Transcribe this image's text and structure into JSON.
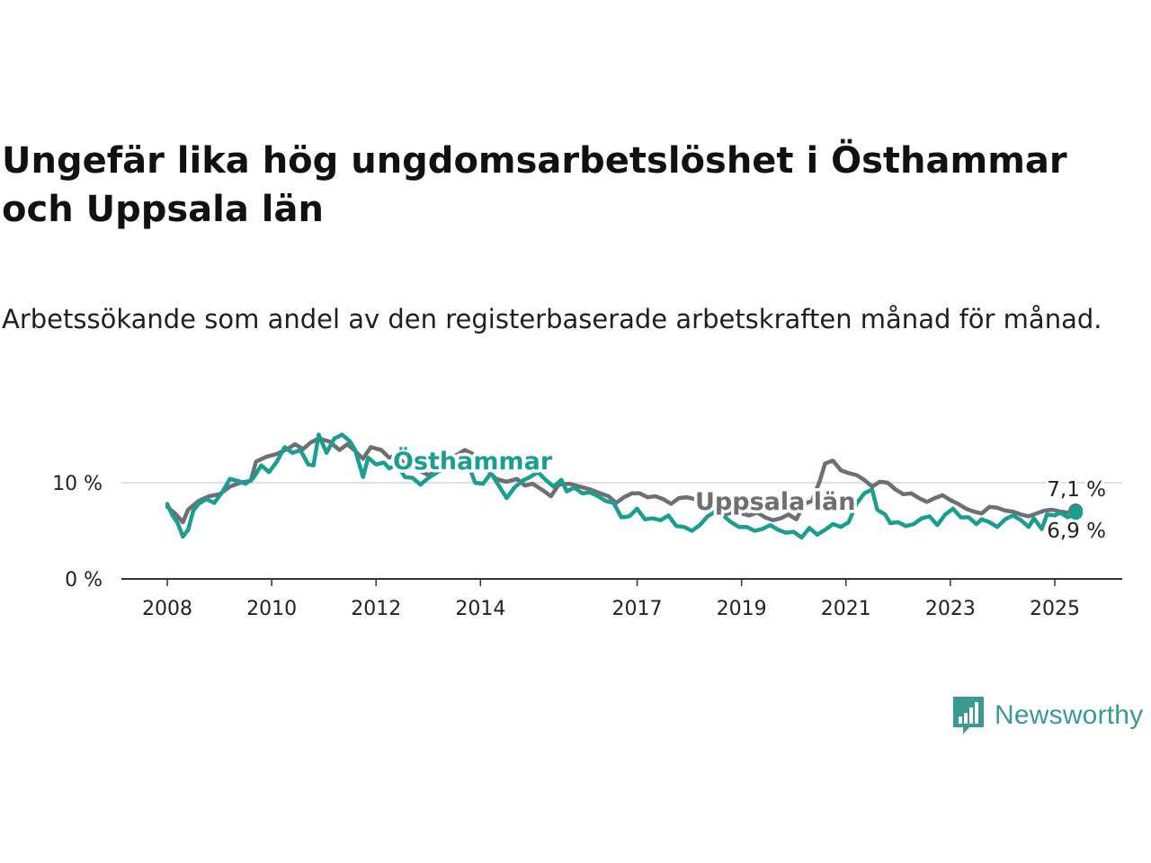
{
  "title": "Ungefär lika hög ungdomsarbetslöshet i Östhammar och Uppsala län",
  "subtitle": "Arbetssökande som andel av den registerbaserade arbetskraften månad för månad.",
  "brand": {
    "name": "Newsworthy",
    "color": "#3a9a92",
    "icon": "bar-chart-speech-bubble-icon"
  },
  "chart_data": {
    "type": "line",
    "x_unit": "year",
    "y_unit": "%",
    "ylim": [
      0,
      15
    ],
    "xlim": [
      2007.6,
      2026.4
    ],
    "grid": "horizontal",
    "y_ticks": [
      {
        "value": 0,
        "label": "0 %"
      },
      {
        "value": 10,
        "label": "10 %"
      }
    ],
    "x_ticks": [
      {
        "value": 2008,
        "label": "2008"
      },
      {
        "value": 2010,
        "label": "2010"
      },
      {
        "value": 2012,
        "label": "2012"
      },
      {
        "value": 2014,
        "label": "2014"
      },
      {
        "value": 2017,
        "label": "2017"
      },
      {
        "value": 2019,
        "label": "2019"
      },
      {
        "value": 2021,
        "label": "2021"
      },
      {
        "value": 2023,
        "label": "2023"
      },
      {
        "value": 2025,
        "label": "2025"
      }
    ],
    "series": [
      {
        "name": "Uppsala län",
        "color": "#6e6e73",
        "last_label": "7,1 %",
        "points": [
          [
            2008.0,
            7.5
          ],
          [
            2008.15,
            6.8
          ],
          [
            2008.3,
            5.9
          ],
          [
            2008.4,
            7.2
          ],
          [
            2008.6,
            8.1
          ],
          [
            2008.8,
            8.6
          ],
          [
            2009.0,
            8.8
          ],
          [
            2009.2,
            9.6
          ],
          [
            2009.4,
            10.0
          ],
          [
            2009.6,
            10.2
          ],
          [
            2009.7,
            12.2
          ],
          [
            2009.9,
            12.7
          ],
          [
            2010.1,
            13.0
          ],
          [
            2010.3,
            13.5
          ],
          [
            2010.45,
            14.0
          ],
          [
            2010.6,
            13.5
          ],
          [
            2010.75,
            14.2
          ],
          [
            2010.9,
            14.6
          ],
          [
            2011.1,
            14.3
          ],
          [
            2011.3,
            13.4
          ],
          [
            2011.45,
            14.0
          ],
          [
            2011.6,
            13.3
          ],
          [
            2011.75,
            12.5
          ],
          [
            2011.9,
            13.7
          ],
          [
            2012.1,
            13.4
          ],
          [
            2012.25,
            12.6
          ],
          [
            2012.4,
            12.9
          ],
          [
            2012.55,
            11.9
          ],
          [
            2012.7,
            11.6
          ],
          [
            2012.85,
            11.2
          ],
          [
            2013.0,
            10.8
          ],
          [
            2013.2,
            11.2
          ],
          [
            2013.4,
            12.6
          ],
          [
            2013.55,
            12.9
          ],
          [
            2013.7,
            13.4
          ],
          [
            2013.85,
            13.0
          ],
          [
            2014.0,
            12.1
          ],
          [
            2014.15,
            11.2
          ],
          [
            2014.3,
            10.4
          ],
          [
            2014.5,
            10.1
          ],
          [
            2014.7,
            10.4
          ],
          [
            2014.85,
            9.7
          ],
          [
            2015.0,
            9.9
          ],
          [
            2015.2,
            9.2
          ],
          [
            2015.35,
            8.6
          ],
          [
            2015.5,
            9.8
          ],
          [
            2015.7,
            9.9
          ],
          [
            2015.9,
            9.6
          ],
          [
            2016.1,
            9.3
          ],
          [
            2016.3,
            8.9
          ],
          [
            2016.45,
            8.6
          ],
          [
            2016.6,
            7.9
          ],
          [
            2016.75,
            8.5
          ],
          [
            2016.9,
            8.9
          ],
          [
            2017.05,
            8.9
          ],
          [
            2017.2,
            8.5
          ],
          [
            2017.35,
            8.6
          ],
          [
            2017.5,
            8.3
          ],
          [
            2017.65,
            7.8
          ],
          [
            2017.8,
            8.4
          ],
          [
            2017.95,
            8.5
          ],
          [
            2018.1,
            8.3
          ],
          [
            2018.25,
            7.9
          ],
          [
            2018.4,
            7.6
          ],
          [
            2018.55,
            6.8
          ],
          [
            2018.7,
            6.7
          ],
          [
            2018.85,
            7.0
          ],
          [
            2019.0,
            6.8
          ],
          [
            2019.15,
            6.6
          ],
          [
            2019.3,
            6.9
          ],
          [
            2019.45,
            6.4
          ],
          [
            2019.6,
            6.1
          ],
          [
            2019.75,
            6.3
          ],
          [
            2019.9,
            6.7
          ],
          [
            2020.05,
            6.2
          ],
          [
            2020.2,
            7.8
          ],
          [
            2020.35,
            8.1
          ],
          [
            2020.5,
            10.2
          ],
          [
            2020.6,
            12.0
          ],
          [
            2020.75,
            12.3
          ],
          [
            2020.9,
            11.3
          ],
          [
            2021.05,
            11.0
          ],
          [
            2021.2,
            10.8
          ],
          [
            2021.35,
            10.3
          ],
          [
            2021.5,
            9.6
          ],
          [
            2021.65,
            10.1
          ],
          [
            2021.8,
            10.0
          ],
          [
            2021.95,
            9.3
          ],
          [
            2022.1,
            8.8
          ],
          [
            2022.25,
            8.9
          ],
          [
            2022.4,
            8.4
          ],
          [
            2022.55,
            8.0
          ],
          [
            2022.7,
            8.4
          ],
          [
            2022.85,
            8.7
          ],
          [
            2023.0,
            8.2
          ],
          [
            2023.15,
            7.8
          ],
          [
            2023.3,
            7.3
          ],
          [
            2023.45,
            7.0
          ],
          [
            2023.6,
            6.8
          ],
          [
            2023.75,
            7.5
          ],
          [
            2023.9,
            7.4
          ],
          [
            2024.05,
            7.1
          ],
          [
            2024.2,
            7.0
          ],
          [
            2024.35,
            6.7
          ],
          [
            2024.5,
            6.5
          ],
          [
            2024.65,
            6.8
          ],
          [
            2024.8,
            7.1
          ],
          [
            2024.95,
            7.2
          ],
          [
            2025.1,
            7.0
          ],
          [
            2025.25,
            6.9
          ],
          [
            2025.4,
            7.1
          ]
        ]
      },
      {
        "name": "Östhammar",
        "color": "#1a9e92",
        "last_label": "6,9 %",
        "points": [
          [
            2008.0,
            7.8
          ],
          [
            2008.1,
            6.6
          ],
          [
            2008.2,
            5.8
          ],
          [
            2008.3,
            4.4
          ],
          [
            2008.4,
            5.1
          ],
          [
            2008.5,
            7.1
          ],
          [
            2008.6,
            7.8
          ],
          [
            2008.75,
            8.3
          ],
          [
            2008.9,
            7.9
          ],
          [
            2009.05,
            9.0
          ],
          [
            2009.2,
            10.4
          ],
          [
            2009.35,
            10.2
          ],
          [
            2009.5,
            9.9
          ],
          [
            2009.65,
            10.5
          ],
          [
            2009.8,
            11.8
          ],
          [
            2009.95,
            11.1
          ],
          [
            2010.1,
            12.2
          ],
          [
            2010.25,
            13.7
          ],
          [
            2010.4,
            13.1
          ],
          [
            2010.55,
            13.4
          ],
          [
            2010.7,
            11.9
          ],
          [
            2010.8,
            11.8
          ],
          [
            2010.9,
            15.0
          ],
          [
            2011.05,
            13.1
          ],
          [
            2011.2,
            14.6
          ],
          [
            2011.35,
            15.0
          ],
          [
            2011.5,
            14.3
          ],
          [
            2011.6,
            13.4
          ],
          [
            2011.75,
            10.6
          ],
          [
            2011.85,
            12.6
          ],
          [
            2012.0,
            11.9
          ],
          [
            2012.15,
            12.1
          ],
          [
            2012.25,
            11.5
          ],
          [
            2012.4,
            11.9
          ],
          [
            2012.55,
            10.6
          ],
          [
            2012.7,
            10.5
          ],
          [
            2012.85,
            9.8
          ],
          [
            2013.0,
            10.5
          ],
          [
            2013.2,
            11.2
          ],
          [
            2013.4,
            11.6
          ],
          [
            2013.6,
            12.0
          ],
          [
            2013.8,
            11.4
          ],
          [
            2013.9,
            10.0
          ],
          [
            2014.05,
            9.9
          ],
          [
            2014.2,
            11.0
          ],
          [
            2014.35,
            9.7
          ],
          [
            2014.5,
            8.4
          ],
          [
            2014.65,
            9.5
          ],
          [
            2014.8,
            10.2
          ],
          [
            2014.95,
            10.6
          ],
          [
            2015.1,
            11.1
          ],
          [
            2015.25,
            10.3
          ],
          [
            2015.4,
            9.6
          ],
          [
            2015.55,
            10.3
          ],
          [
            2015.65,
            9.1
          ],
          [
            2015.8,
            9.5
          ],
          [
            2015.95,
            8.9
          ],
          [
            2016.1,
            9.0
          ],
          [
            2016.25,
            8.6
          ],
          [
            2016.4,
            8.1
          ],
          [
            2016.55,
            7.9
          ],
          [
            2016.7,
            6.4
          ],
          [
            2016.85,
            6.5
          ],
          [
            2017.0,
            7.3
          ],
          [
            2017.15,
            6.2
          ],
          [
            2017.3,
            6.3
          ],
          [
            2017.45,
            6.1
          ],
          [
            2017.6,
            6.6
          ],
          [
            2017.75,
            5.5
          ],
          [
            2017.9,
            5.4
          ],
          [
            2018.05,
            5.0
          ],
          [
            2018.2,
            5.6
          ],
          [
            2018.35,
            6.5
          ],
          [
            2018.5,
            7.0
          ],
          [
            2018.65,
            6.6
          ],
          [
            2018.8,
            5.9
          ],
          [
            2018.95,
            5.4
          ],
          [
            2019.1,
            5.4
          ],
          [
            2019.25,
            5.0
          ],
          [
            2019.4,
            5.2
          ],
          [
            2019.55,
            5.6
          ],
          [
            2019.7,
            5.1
          ],
          [
            2019.85,
            4.8
          ],
          [
            2020.0,
            4.9
          ],
          [
            2020.15,
            4.3
          ],
          [
            2020.3,
            5.3
          ],
          [
            2020.45,
            4.6
          ],
          [
            2020.6,
            5.1
          ],
          [
            2020.75,
            5.7
          ],
          [
            2020.9,
            5.4
          ],
          [
            2021.05,
            5.9
          ],
          [
            2021.2,
            7.8
          ],
          [
            2021.35,
            8.9
          ],
          [
            2021.5,
            9.3
          ],
          [
            2021.6,
            7.2
          ],
          [
            2021.75,
            6.7
          ],
          [
            2021.85,
            5.8
          ],
          [
            2022.0,
            5.9
          ],
          [
            2022.15,
            5.5
          ],
          [
            2022.3,
            5.7
          ],
          [
            2022.45,
            6.3
          ],
          [
            2022.6,
            6.5
          ],
          [
            2022.75,
            5.6
          ],
          [
            2022.9,
            6.7
          ],
          [
            2023.05,
            7.3
          ],
          [
            2023.2,
            6.4
          ],
          [
            2023.35,
            6.4
          ],
          [
            2023.5,
            5.7
          ],
          [
            2023.6,
            6.2
          ],
          [
            2023.75,
            5.9
          ],
          [
            2023.9,
            5.4
          ],
          [
            2024.05,
            6.2
          ],
          [
            2024.2,
            6.6
          ],
          [
            2024.35,
            6.1
          ],
          [
            2024.5,
            5.4
          ],
          [
            2024.6,
            6.3
          ],
          [
            2024.75,
            5.2
          ],
          [
            2024.85,
            6.7
          ],
          [
            2025.0,
            6.6
          ],
          [
            2025.1,
            6.9
          ],
          [
            2025.25,
            6.4
          ],
          [
            2025.4,
            6.9
          ]
        ]
      }
    ]
  }
}
